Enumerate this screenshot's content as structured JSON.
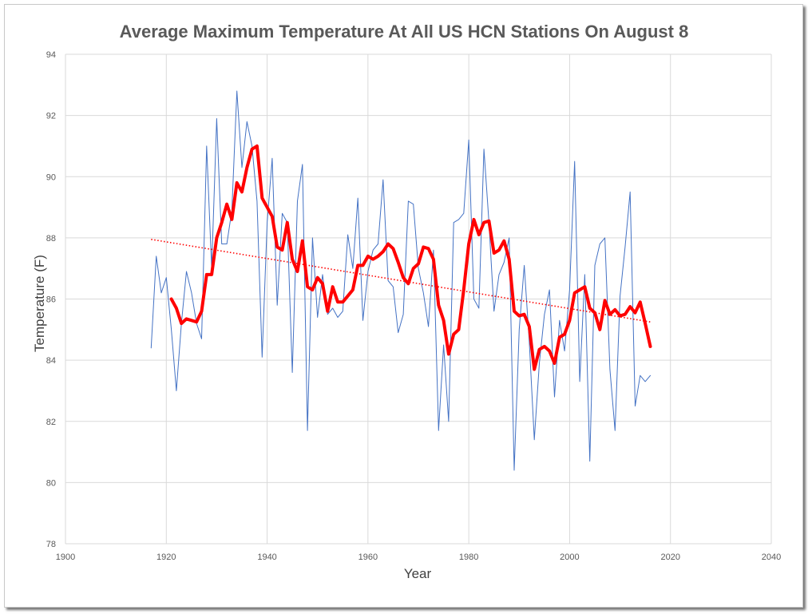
{
  "chart_data": {
    "type": "line",
    "title": "Average Maximum Temperature At All US HCN Stations On August 8",
    "xlabel": "Year",
    "ylabel": "Temperature (F)",
    "xlim": [
      1900,
      2040
    ],
    "ylim": [
      78,
      94
    ],
    "xticks": [
      1900,
      1920,
      1940,
      1960,
      1980,
      2000,
      2020,
      2040
    ],
    "yticks": [
      78,
      80,
      82,
      84,
      86,
      88,
      90,
      92,
      94
    ],
    "grid": true,
    "series": [
      {
        "color": "#4472c4",
        "style": "thin-solid",
        "x": [
          1917,
          1918,
          1919,
          1920,
          1921,
          1922,
          1923,
          1924,
          1925,
          1926,
          1927,
          1928,
          1929,
          1930,
          1931,
          1932,
          1933,
          1934,
          1935,
          1936,
          1937,
          1938,
          1939,
          1940,
          1941,
          1942,
          1943,
          1944,
          1945,
          1946,
          1947,
          1948,
          1949,
          1950,
          1951,
          1952,
          1953,
          1954,
          1955,
          1956,
          1957,
          1958,
          1959,
          1960,
          1961,
          1962,
          1963,
          1964,
          1965,
          1966,
          1967,
          1968,
          1969,
          1970,
          1971,
          1972,
          1973,
          1974,
          1975,
          1976,
          1977,
          1978,
          1979,
          1980,
          1981,
          1982,
          1983,
          1984,
          1985,
          1986,
          1987,
          1988,
          1989,
          1990,
          1991,
          1992,
          1993,
          1994,
          1995,
          1996,
          1997,
          1998,
          1999,
          2000,
          2001,
          2002,
          2003,
          2004,
          2005,
          2006,
          2007,
          2008,
          2009,
          2010,
          2011,
          2012,
          2013,
          2014,
          2015,
          2016
        ],
        "y": [
          84.4,
          87.4,
          86.2,
          86.7,
          85.0,
          83.0,
          85.2,
          86.9,
          86.2,
          85.2,
          84.7,
          91.0,
          87.0,
          91.9,
          87.8,
          87.8,
          88.9,
          92.8,
          90.3,
          91.8,
          91.0,
          89.2,
          84.1,
          88.5,
          90.6,
          85.8,
          88.8,
          88.5,
          83.6,
          89.2,
          90.4,
          81.7,
          88.0,
          85.4,
          86.8,
          85.5,
          85.7,
          85.4,
          85.6,
          88.1,
          87.0,
          89.3,
          85.3,
          86.9,
          87.6,
          87.8,
          89.9,
          86.6,
          86.4,
          84.9,
          85.5,
          89.2,
          89.1,
          87.0,
          86.2,
          85.1,
          87.6,
          81.7,
          84.5,
          82.0,
          88.5,
          88.6,
          88.8,
          91.2,
          86.0,
          85.7,
          90.9,
          88.5,
          85.6,
          86.8,
          87.2,
          88.0,
          80.4,
          85.0,
          87.1,
          84.6,
          81.4,
          83.9,
          85.5,
          86.3,
          82.8,
          85.3,
          84.3,
          86.3,
          90.5,
          83.3,
          86.8,
          80.7,
          87.1,
          87.8,
          88.0,
          83.7,
          81.7,
          86.1,
          87.7,
          89.5,
          82.5,
          83.5,
          83.3,
          83.5
        ]
      },
      {
        "color": "#ff0000",
        "style": "thick-solid",
        "x": [
          1921,
          1922,
          1923,
          1924,
          1925,
          1926,
          1927,
          1928,
          1929,
          1930,
          1931,
          1932,
          1933,
          1934,
          1935,
          1936,
          1937,
          1938,
          1939,
          1940,
          1941,
          1942,
          1943,
          1944,
          1945,
          1946,
          1947,
          1948,
          1949,
          1950,
          1951,
          1952,
          1953,
          1954,
          1955,
          1956,
          1957,
          1958,
          1959,
          1960,
          1961,
          1962,
          1963,
          1964,
          1965,
          1966,
          1967,
          1968,
          1969,
          1970,
          1971,
          1972,
          1973,
          1974,
          1975,
          1976,
          1977,
          1978,
          1979,
          1980,
          1981,
          1982,
          1983,
          1984,
          1985,
          1986,
          1987,
          1988,
          1989,
          1990,
          1991,
          1992,
          1993,
          1994,
          1995,
          1996,
          1997,
          1998,
          1999,
          2000,
          2001,
          2002,
          2003,
          2004,
          2005,
          2006,
          2007,
          2008,
          2009,
          2010,
          2011,
          2012,
          2013,
          2014,
          2015,
          2016
        ],
        "y": [
          86.0,
          85.7,
          85.2,
          85.35,
          85.3,
          85.25,
          85.6,
          86.8,
          86.8,
          88.0,
          88.5,
          89.1,
          88.6,
          89.8,
          89.5,
          90.3,
          90.9,
          91.0,
          89.3,
          89.0,
          88.7,
          87.7,
          87.6,
          88.5,
          87.3,
          86.9,
          87.9,
          86.4,
          86.3,
          86.7,
          86.5,
          85.6,
          86.4,
          85.9,
          85.9,
          86.1,
          86.3,
          87.1,
          87.1,
          87.4,
          87.3,
          87.4,
          87.55,
          87.8,
          87.65,
          87.2,
          86.7,
          86.5,
          87.0,
          87.15,
          87.7,
          87.65,
          87.3,
          85.8,
          85.3,
          84.2,
          84.85,
          85.0,
          86.3,
          87.8,
          88.6,
          88.1,
          88.5,
          88.55,
          87.5,
          87.6,
          87.9,
          87.3,
          85.6,
          85.45,
          85.5,
          85.1,
          83.7,
          84.35,
          84.45,
          84.3,
          83.9,
          84.75,
          84.85,
          85.3,
          86.2,
          86.3,
          86.4,
          85.7,
          85.55,
          85.0,
          85.95,
          85.5,
          85.65,
          85.45,
          85.5,
          85.75,
          85.55,
          85.9,
          85.2,
          84.45
        ]
      },
      {
        "color": "#ff0000",
        "style": "dotted",
        "trendline": true,
        "x": [
          1917,
          2016
        ],
        "y": [
          87.95,
          85.25
        ]
      }
    ]
  }
}
